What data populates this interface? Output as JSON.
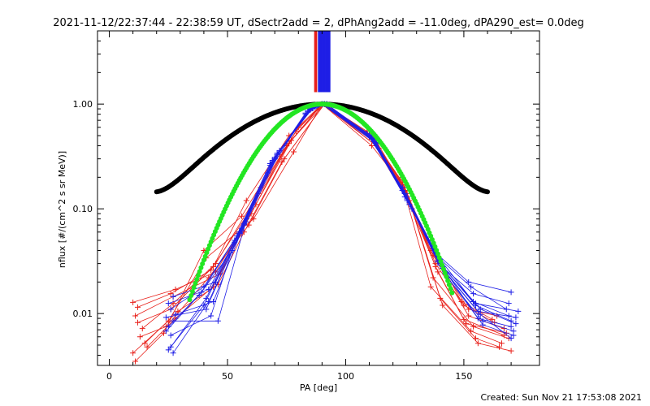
{
  "chart_data": {
    "type": "scatter",
    "title": "2021-11-12/22:37:44 - 22:38:59 UT, dSectr2add = 2, dPhAng2add = -11.0deg, dPA290_est=  0.0deg",
    "xlabel": "PA [deg]",
    "ylabel": "nflux [#/(cm^2 s sr MeV)]",
    "footer": "Created: Sun Nov 21 17:53:08 2021",
    "xlim": [
      -5,
      182
    ],
    "ylim": [
      0.0032,
      5.0
    ],
    "yscale": "log",
    "xticks": [
      {
        "v": 0,
        "label": "0"
      },
      {
        "v": 50,
        "label": "50"
      },
      {
        "v": 100,
        "label": "100"
      },
      {
        "v": 150,
        "label": "150"
      }
    ],
    "yticks": [
      {
        "v": 0.01,
        "label": "0.01"
      },
      {
        "v": 0.1,
        "label": "0.10"
      },
      {
        "v": 1.0,
        "label": "1.00"
      }
    ],
    "colors": {
      "red": "#e8201a",
      "blue": "#1e1ee6",
      "black": "#000000",
      "green": "#22e622",
      "axis": "#000000"
    },
    "vertical_bars": [
      {
        "x": 87.0,
        "color": "#e8201a"
      },
      {
        "x": 87.6,
        "color": "#e8201a"
      },
      {
        "x": 88.6,
        "color": "#1e1ee6"
      },
      {
        "x": 89.2,
        "color": "#1e1ee6"
      },
      {
        "x": 89.8,
        "color": "#1e1ee6"
      },
      {
        "x": 90.4,
        "color": "#1e1ee6"
      },
      {
        "x": 91.0,
        "color": "#1e1ee6"
      },
      {
        "x": 91.6,
        "color": "#1e1ee6"
      },
      {
        "x": 92.2,
        "color": "#1e1ee6"
      },
      {
        "x": 92.8,
        "color": "#1e1ee6"
      },
      {
        "x": 93.2,
        "color": "#1e1ee6"
      }
    ],
    "vertical_bar_range": [
      1.3,
      5.0
    ],
    "series": [
      {
        "color": "#e8201a",
        "points": [
          [
            10,
            0.0128
          ],
          [
            28,
            0.017
          ],
          [
            45,
            0.025
          ],
          [
            60,
            0.09
          ],
          [
            75,
            0.4
          ],
          [
            90,
            1.0
          ],
          [
            112,
            0.45
          ],
          [
            125,
            0.15
          ],
          [
            138,
            0.03
          ],
          [
            150,
            0.012
          ],
          [
            163,
            0.0082
          ]
        ]
      },
      {
        "color": "#e8201a",
        "points": [
          [
            11,
            0.0095
          ],
          [
            27,
            0.0145
          ],
          [
            47,
            0.024
          ],
          [
            62,
            0.11
          ],
          [
            77,
            0.45
          ],
          [
            91,
            1.0
          ],
          [
            113,
            0.42
          ],
          [
            126,
            0.13
          ],
          [
            137,
            0.036
          ],
          [
            152,
            0.0095
          ],
          [
            167,
            0.0072
          ]
        ]
      },
      {
        "color": "#e8201a",
        "points": [
          [
            12,
            0.0082
          ],
          [
            26,
            0.011
          ],
          [
            44,
            0.028
          ],
          [
            58,
            0.12
          ],
          [
            76,
            0.5
          ],
          [
            90,
            1.0
          ],
          [
            110,
            0.5
          ],
          [
            127,
            0.11
          ],
          [
            139,
            0.025
          ],
          [
            151,
            0.008
          ],
          [
            168,
            0.0065
          ]
        ]
      },
      {
        "color": "#e8201a",
        "points": [
          [
            10,
            0.0042
          ],
          [
            25,
            0.0085
          ],
          [
            41,
            0.034
          ],
          [
            61,
            0.08
          ],
          [
            78,
            0.35
          ],
          [
            90,
            1.0
          ],
          [
            111,
            0.4
          ],
          [
            124,
            0.17
          ],
          [
            136,
            0.018
          ],
          [
            153,
            0.0068
          ],
          [
            166,
            0.0052
          ]
        ]
      },
      {
        "color": "#e8201a",
        "points": [
          [
            13,
            0.006
          ],
          [
            24,
            0.0075
          ],
          [
            42,
            0.022
          ],
          [
            59,
            0.07
          ],
          [
            74,
            0.3
          ],
          [
            91,
            1.0
          ],
          [
            114,
            0.38
          ],
          [
            128,
            0.1
          ],
          [
            140,
            0.014
          ],
          [
            155,
            0.0058
          ],
          [
            165,
            0.0048
          ]
        ]
      },
      {
        "color": "#e8201a",
        "points": [
          [
            14,
            0.0072
          ],
          [
            27,
            0.0125
          ],
          [
            45,
            0.03
          ],
          [
            63,
            0.14
          ],
          [
            79,
            0.55
          ],
          [
            90,
            1.0
          ],
          [
            112,
            0.48
          ],
          [
            126,
            0.14
          ],
          [
            137,
            0.022
          ],
          [
            154,
            0.0075
          ],
          [
            169,
            0.0058
          ]
        ]
      },
      {
        "color": "#e8201a",
        "points": [
          [
            15,
            0.0052
          ],
          [
            29,
            0.0105
          ],
          [
            46,
            0.019
          ],
          [
            57,
            0.06
          ],
          [
            73,
            0.28
          ],
          [
            91,
            1.0
          ],
          [
            109,
            0.55
          ],
          [
            123,
            0.19
          ],
          [
            135,
            0.05
          ],
          [
            149,
            0.013
          ],
          [
            162,
            0.0088
          ]
        ]
      },
      {
        "color": "#e8201a",
        "points": [
          [
            12,
            0.0115
          ],
          [
            26,
            0.0155
          ],
          [
            43,
            0.026
          ],
          [
            60,
            0.1
          ],
          [
            76,
            0.42
          ],
          [
            90,
            1.0
          ],
          [
            111,
            0.46
          ],
          [
            125,
            0.16
          ],
          [
            136,
            0.04
          ],
          [
            152,
            0.011
          ],
          [
            164,
            0.0095
          ]
        ]
      },
      {
        "color": "#e8201a",
        "points": [
          [
            11,
            0.0035
          ],
          [
            23,
            0.0065
          ],
          [
            40,
            0.04
          ],
          [
            56,
            0.085
          ],
          [
            72,
            0.33
          ],
          [
            90,
            1.0
          ],
          [
            113,
            0.4
          ],
          [
            127,
            0.12
          ],
          [
            141,
            0.012
          ],
          [
            156,
            0.0052
          ],
          [
            170,
            0.0044
          ]
        ]
      },
      {
        "color": "#e8201a",
        "points": [
          [
            16,
            0.0048
          ],
          [
            28,
            0.009
          ],
          [
            44,
            0.018
          ],
          [
            64,
            0.16
          ],
          [
            80,
            0.6
          ],
          [
            91,
            1.0
          ],
          [
            110,
            0.52
          ],
          [
            124,
            0.18
          ],
          [
            138,
            0.028
          ],
          [
            150,
            0.0088
          ],
          [
            167,
            0.0062
          ]
        ]
      },
      {
        "color": "#1e1ee6",
        "points": [
          [
            25,
            0.0045
          ],
          [
            40,
            0.012
          ],
          [
            55,
            0.06
          ],
          [
            70,
            0.3
          ],
          [
            85,
            0.9
          ],
          [
            91,
            1.0
          ],
          [
            110,
            0.5
          ],
          [
            125,
            0.14
          ],
          [
            140,
            0.03
          ],
          [
            155,
            0.012
          ],
          [
            170,
            0.0085
          ]
        ]
      },
      {
        "color": "#1e1ee6",
        "points": [
          [
            26,
            0.0048
          ],
          [
            41,
            0.014
          ],
          [
            53,
            0.05
          ],
          [
            68,
            0.27
          ],
          [
            84,
            0.85
          ],
          [
            90,
            1.0
          ],
          [
            111,
            0.48
          ],
          [
            126,
            0.12
          ],
          [
            141,
            0.028
          ],
          [
            157,
            0.011
          ],
          [
            172,
            0.008
          ]
        ]
      },
      {
        "color": "#1e1ee6",
        "points": [
          [
            27,
            0.0042
          ],
          [
            42,
            0.013
          ],
          [
            57,
            0.07
          ],
          [
            71,
            0.33
          ],
          [
            86,
            0.92
          ],
          [
            92,
            1.0
          ],
          [
            112,
            0.44
          ],
          [
            127,
            0.11
          ],
          [
            142,
            0.024
          ],
          [
            156,
            0.009
          ],
          [
            170,
            0.0075
          ]
        ]
      },
      {
        "color": "#1e1ee6",
        "points": [
          [
            24,
            0.0068
          ],
          [
            38,
            0.015
          ],
          [
            52,
            0.04
          ],
          [
            67,
            0.22
          ],
          [
            83,
            0.8
          ],
          [
            91,
            1.0
          ],
          [
            109,
            0.52
          ],
          [
            124,
            0.16
          ],
          [
            139,
            0.035
          ],
          [
            154,
            0.013
          ],
          [
            169,
            0.0095
          ]
        ]
      },
      {
        "color": "#1e1ee6",
        "points": [
          [
            25,
            0.0075
          ],
          [
            39,
            0.016
          ],
          [
            54,
            0.055
          ],
          [
            69,
            0.29
          ],
          [
            85,
            0.88
          ],
          [
            90,
            1.0
          ],
          [
            113,
            0.42
          ],
          [
            128,
            0.1
          ],
          [
            143,
            0.022
          ],
          [
            158,
            0.0085
          ],
          [
            171,
            0.0068
          ]
        ]
      },
      {
        "color": "#1e1ee6",
        "points": [
          [
            26,
            0.011
          ],
          [
            40,
            0.018
          ],
          [
            56,
            0.065
          ],
          [
            70,
            0.31
          ],
          [
            84,
            0.86
          ],
          [
            91,
            1.0
          ],
          [
            111,
            0.47
          ],
          [
            125,
            0.13
          ],
          [
            140,
            0.033
          ],
          [
            153,
            0.018
          ],
          [
            168,
            0.011
          ]
        ]
      },
      {
        "color": "#1e1ee6",
        "points": [
          [
            27,
            0.0085
          ],
          [
            46,
            0.0085
          ],
          [
            58,
            0.08
          ],
          [
            72,
            0.36
          ],
          [
            86,
            0.93
          ],
          [
            90,
            1.0
          ],
          [
            112,
            0.45
          ],
          [
            126,
            0.12
          ],
          [
            141,
            0.027
          ],
          [
            156,
            0.0105
          ],
          [
            172,
            0.0092
          ]
        ]
      },
      {
        "color": "#1e1ee6",
        "points": [
          [
            24,
            0.0092
          ],
          [
            41,
            0.011
          ],
          [
            55,
            0.058
          ],
          [
            69,
            0.28
          ],
          [
            85,
            0.89
          ],
          [
            92,
            1.0
          ],
          [
            110,
            0.49
          ],
          [
            124,
            0.15
          ],
          [
            138,
            0.038
          ],
          [
            152,
            0.02
          ],
          [
            170,
            0.016
          ]
        ]
      },
      {
        "color": "#1e1ee6",
        "points": [
          [
            25,
            0.0125
          ],
          [
            42,
            0.017
          ],
          [
            57,
            0.072
          ],
          [
            71,
            0.34
          ],
          [
            86,
            0.91
          ],
          [
            91,
            1.0
          ],
          [
            113,
            0.43
          ],
          [
            127,
            0.11
          ],
          [
            142,
            0.025
          ],
          [
            157,
            0.0098
          ],
          [
            170,
            0.0058
          ]
        ]
      },
      {
        "color": "#1e1ee6",
        "points": [
          [
            26,
            0.0062
          ],
          [
            43,
            0.0095
          ],
          [
            53,
            0.048
          ],
          [
            68,
            0.26
          ],
          [
            83,
            0.82
          ],
          [
            90,
            1.0
          ],
          [
            111,
            0.5
          ],
          [
            125,
            0.14
          ],
          [
            139,
            0.031
          ],
          [
            155,
            0.0125
          ],
          [
            173,
            0.0105
          ]
        ]
      },
      {
        "color": "#1e1ee6",
        "points": [
          [
            28,
            0.0098
          ],
          [
            44,
            0.013
          ],
          [
            56,
            0.062
          ],
          [
            70,
            0.3
          ],
          [
            85,
            0.9
          ],
          [
            91,
            1.0
          ],
          [
            112,
            0.46
          ],
          [
            126,
            0.13
          ],
          [
            140,
            0.029
          ],
          [
            154,
            0.0155
          ],
          [
            169,
            0.0125
          ]
        ]
      },
      {
        "color": "#1e1ee6",
        "points": [
          [
            27,
            0.0145
          ],
          [
            45,
            0.02
          ],
          [
            58,
            0.075
          ],
          [
            72,
            0.35
          ],
          [
            86,
            0.94
          ],
          [
            92,
            1.0
          ],
          [
            110,
            0.51
          ],
          [
            124,
            0.15
          ],
          [
            139,
            0.032
          ],
          [
            158,
            0.0078
          ],
          [
            171,
            0.0062
          ]
        ]
      }
    ],
    "black_curve": {
      "color": "#000000",
      "x_start": 20,
      "x_end": 160,
      "step": 0.5
    },
    "green_curve": {
      "color": "#22e622",
      "x_start": 34,
      "x_end": 145,
      "step": 0.6
    }
  }
}
